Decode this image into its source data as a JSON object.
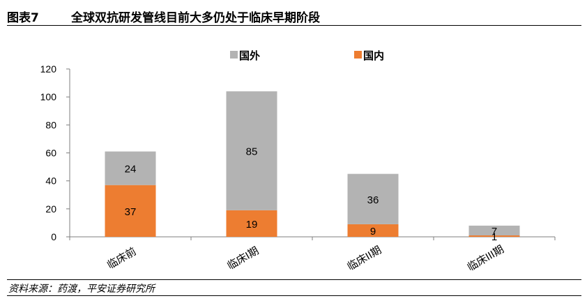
{
  "figure": {
    "label": "图表7",
    "title": "全球双抗研发管线目前大多仍处于临床早期阶段",
    "source": "资料来源：药渡，平安证券研究所"
  },
  "colors": {
    "domestic": "#ED7D31",
    "foreign": "#B3B3B3",
    "axis": "#7F7F7F"
  },
  "chart_data": {
    "type": "bar",
    "stacked": true,
    "categories": [
      "临床前",
      "临床I期",
      "临床II期",
      "临床III期"
    ],
    "series": [
      {
        "name": "国内",
        "values": [
          37,
          19,
          9,
          1
        ]
      },
      {
        "name": "国外",
        "values": [
          24,
          85,
          36,
          7
        ]
      }
    ],
    "ylim": [
      0,
      120
    ],
    "yticks": [
      0,
      20,
      40,
      60,
      80,
      100,
      120
    ],
    "legend": [
      "国外",
      "国内"
    ],
    "legend_position": "top-center",
    "grid": false
  }
}
